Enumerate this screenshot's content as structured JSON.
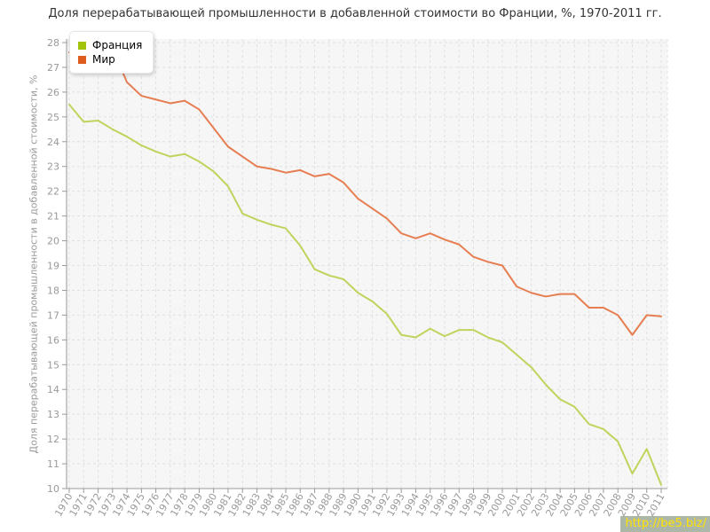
{
  "title": "Доля перерабатывающей промышленности в добавленной стоимости во Франции, %, 1970-2011 гг.",
  "watermark": {
    "label": "http://be5.biz/",
    "text_color": "#ffe400",
    "bg_color": "rgba(158,170,152,0.85)"
  },
  "colors": {
    "plot_bg": "#f6f6f6",
    "grid": "#e0e0e0",
    "axis": "#999999",
    "tick_text": "#9a9a9a",
    "title_text": "#333333"
  },
  "chart_data": {
    "type": "line",
    "title": "Доля перерабатывающей промышленности в добавленной стоимости во Франции, %, 1970-2011 гг.",
    "xlabel": "",
    "ylabel": "Доля перерабатывающей промышленности в добавленной стоимости, %",
    "ylim": [
      10,
      28
    ],
    "yticks": [
      10,
      11,
      12,
      13,
      14,
      15,
      16,
      17,
      18,
      19,
      20,
      21,
      22,
      23,
      24,
      25,
      26,
      27,
      28
    ],
    "x": [
      1970,
      1971,
      1972,
      1973,
      1974,
      1975,
      1976,
      1977,
      1978,
      1979,
      1980,
      1981,
      1982,
      1983,
      1984,
      1985,
      1986,
      1987,
      1988,
      1989,
      1990,
      1991,
      1992,
      1993,
      1994,
      1995,
      1996,
      1997,
      1998,
      1999,
      2000,
      2001,
      2002,
      2003,
      2004,
      2005,
      2006,
      2007,
      2008,
      2009,
      2010,
      2011
    ],
    "grid": true,
    "legend_position": "top-left",
    "series": [
      {
        "name": "Франция",
        "line_color": "#bfd45c",
        "swatch_color": "#a2c40a",
        "values": [
          25.5,
          24.8,
          24.85,
          24.5,
          24.2,
          23.85,
          23.6,
          23.4,
          23.5,
          23.2,
          22.8,
          22.2,
          21.1,
          20.85,
          20.65,
          20.5,
          19.8,
          18.85,
          18.6,
          18.45,
          17.9,
          17.55,
          17.05,
          16.2,
          16.1,
          16.45,
          16.15,
          16.4,
          16.4,
          16.1,
          15.9,
          15.4,
          14.9,
          14.2,
          13.6,
          13.3,
          12.6,
          12.4,
          11.9,
          10.6,
          11.6,
          10.15
        ]
      },
      {
        "name": "Мир",
        "line_color": "#e67e52",
        "swatch_color": "#de5c1e",
        "values": [
          27.6,
          27.4,
          27.5,
          27.75,
          26.4,
          25.85,
          25.7,
          25.55,
          25.65,
          25.3,
          24.55,
          23.8,
          23.4,
          23.0,
          22.9,
          22.75,
          22.85,
          22.6,
          22.7,
          22.35,
          21.7,
          21.3,
          20.9,
          20.3,
          20.1,
          20.3,
          20.05,
          19.85,
          19.35,
          19.15,
          19.0,
          18.15,
          17.9,
          17.75,
          17.85,
          17.85,
          17.3,
          17.3,
          17.0,
          16.2,
          17.0,
          16.95
        ]
      }
    ]
  }
}
